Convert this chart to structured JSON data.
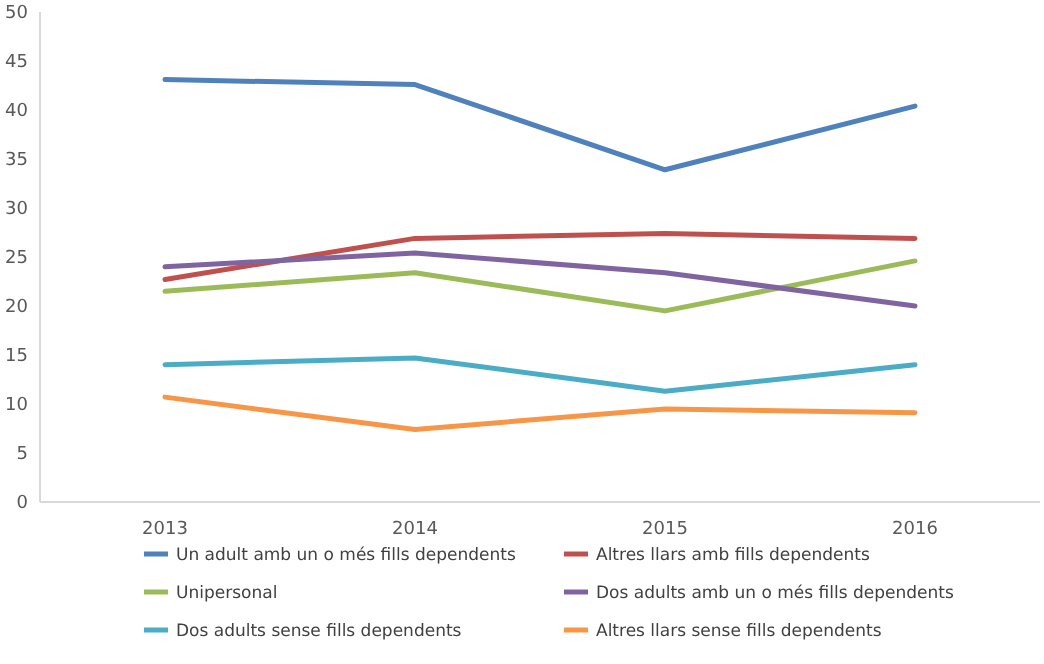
{
  "chart_data": {
    "type": "line",
    "categories": [
      "2013",
      "2014",
      "2015",
      "2016"
    ],
    "series": [
      {
        "name": "Un adult amb un o més fills dependents",
        "color": "#4f81bd",
        "values": [
          43.1,
          42.6,
          33.9,
          40.4
        ]
      },
      {
        "name": "Altres llars amb fills dependents",
        "color": "#c0504d",
        "values": [
          22.7,
          26.9,
          27.4,
          26.9
        ]
      },
      {
        "name": "Unipersonal",
        "color": "#9bbb59",
        "values": [
          21.5,
          23.4,
          19.5,
          24.6
        ]
      },
      {
        "name": "Dos adults amb un o més fills dependents",
        "color": "#8064a2",
        "values": [
          24.0,
          25.4,
          23.4,
          20.0
        ]
      },
      {
        "name": "Dos adults sense fills dependents",
        "color": "#4bacc6",
        "values": [
          14.0,
          14.7,
          11.3,
          14.0
        ]
      },
      {
        "name": "Altres llars sense fills dependents",
        "color": "#f79646",
        "values": [
          10.7,
          7.4,
          9.5,
          9.1
        ]
      }
    ],
    "ylim": [
      0,
      50
    ],
    "yticks": [
      0,
      5,
      10,
      15,
      20,
      25,
      30,
      35,
      40,
      45,
      50
    ],
    "grid": false,
    "legend": "bottom",
    "marker": "none",
    "line_style": "solid"
  }
}
